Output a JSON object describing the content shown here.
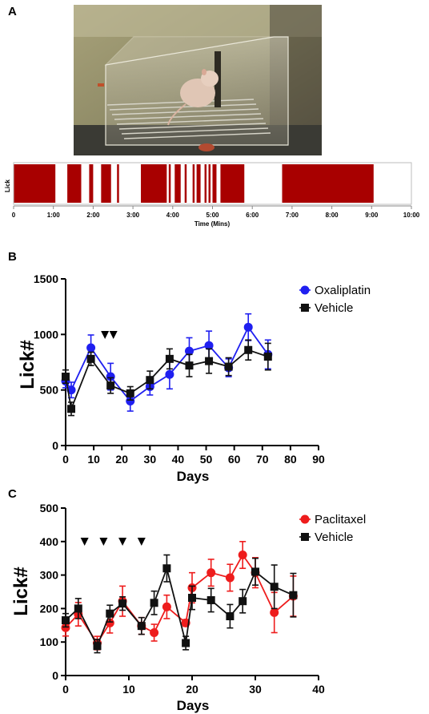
{
  "panel_labels": {
    "a": "A",
    "b": "B",
    "c": "C"
  },
  "photo": {
    "icon": "mouse-in-lick-cage-photo"
  },
  "colors": {
    "raster": "#a80000",
    "oxaliplatin": "#1f1ff0",
    "paclitaxel": "#ee1c1c",
    "vehicle": "#111111"
  },
  "chart_data": [
    {
      "type": "raster",
      "ylabel": "Lick",
      "xlabel": "Time (Mins)",
      "xlim": [
        0,
        10
      ],
      "xticks": [
        "0",
        "1:00",
        "2:00",
        "3:00",
        "4:00",
        "5:00",
        "6:00",
        "7:00",
        "8:00",
        "9:00",
        "10:00"
      ],
      "lick_bouts": [
        [
          0,
          1.05
        ],
        [
          1.35,
          1.7
        ],
        [
          1.9,
          2.0
        ],
        [
          2.2,
          2.45
        ],
        [
          2.6,
          2.65
        ],
        [
          3.2,
          3.85
        ],
        [
          3.9,
          3.95
        ],
        [
          4.05,
          4.2
        ],
        [
          4.3,
          4.35
        ],
        [
          4.5,
          4.55
        ],
        [
          4.6,
          4.7
        ],
        [
          4.8,
          4.85
        ],
        [
          4.9,
          4.95
        ],
        [
          5.0,
          5.1
        ],
        [
          5.2,
          5.8
        ],
        [
          6.75,
          9.05
        ]
      ]
    },
    {
      "type": "line",
      "xlabel": "Days",
      "ylabel": "Lick#",
      "xlim": [
        0,
        90
      ],
      "ylim": [
        0,
        1500
      ],
      "xticks": [
        "0",
        "10",
        "20",
        "30",
        "40",
        "50",
        "60",
        "70",
        "80",
        "90"
      ],
      "yticks": [
        "0",
        "500",
        "1000",
        "1500"
      ],
      "legend_position": "top-right",
      "injection_days": [
        14,
        17
      ],
      "series": [
        {
          "name": "Oxaliplatin",
          "marker": "circle",
          "x": [
            0,
            2,
            9,
            16,
            23,
            30,
            37,
            44,
            51,
            58,
            65,
            72
          ],
          "y": [
            580,
            500,
            880,
            620,
            400,
            530,
            640,
            850,
            900,
            700,
            1065,
            820
          ],
          "err": [
            60,
            70,
            115,
            120,
            90,
            75,
            130,
            120,
            130,
            80,
            120,
            130
          ]
        },
        {
          "name": "Vehicle",
          "marker": "square",
          "x": [
            0,
            2,
            9,
            16,
            23,
            30,
            37,
            44,
            51,
            58,
            65,
            72
          ],
          "y": [
            620,
            330,
            780,
            540,
            470,
            590,
            780,
            720,
            760,
            710,
            860,
            800
          ],
          "err": [
            60,
            60,
            60,
            70,
            60,
            80,
            90,
            100,
            110,
            80,
            90,
            120
          ]
        }
      ]
    },
    {
      "type": "line",
      "xlabel": "Days",
      "ylabel": "Lick#",
      "xlim": [
        0,
        40
      ],
      "ylim": [
        0,
        500
      ],
      "xticks": [
        "0",
        "10",
        "20",
        "30",
        "40"
      ],
      "yticks": [
        "0",
        "100",
        "200",
        "300",
        "400",
        "500"
      ],
      "legend_position": "top-right",
      "injection_days": [
        3,
        6,
        9,
        12
      ],
      "series": [
        {
          "name": "Paclitaxel",
          "marker": "circle",
          "x": [
            0,
            2,
            5,
            7,
            9,
            12,
            14,
            16,
            19,
            20,
            23,
            26,
            28,
            30,
            33,
            36
          ],
          "y": [
            143,
            183,
            97,
            157,
            222,
            148,
            128,
            205,
            157,
            262,
            307,
            292,
            360,
            307,
            188,
            237
          ],
          "err": [
            25,
            35,
            20,
            30,
            45,
            25,
            25,
            35,
            10,
            45,
            40,
            40,
            40,
            45,
            60,
            60
          ]
        },
        {
          "name": "Vehicle",
          "marker": "square",
          "x": [
            0,
            2,
            5,
            7,
            9,
            12,
            14,
            16,
            19,
            20,
            23,
            26,
            28,
            30,
            33,
            36
          ],
          "y": [
            165,
            200,
            88,
            185,
            215,
            148,
            217,
            320,
            97,
            232,
            225,
            177,
            222,
            310,
            265,
            240
          ],
          "err": [
            20,
            30,
            20,
            25,
            20,
            25,
            35,
            40,
            20,
            35,
            35,
            35,
            35,
            40,
            65,
            65
          ]
        }
      ]
    }
  ]
}
